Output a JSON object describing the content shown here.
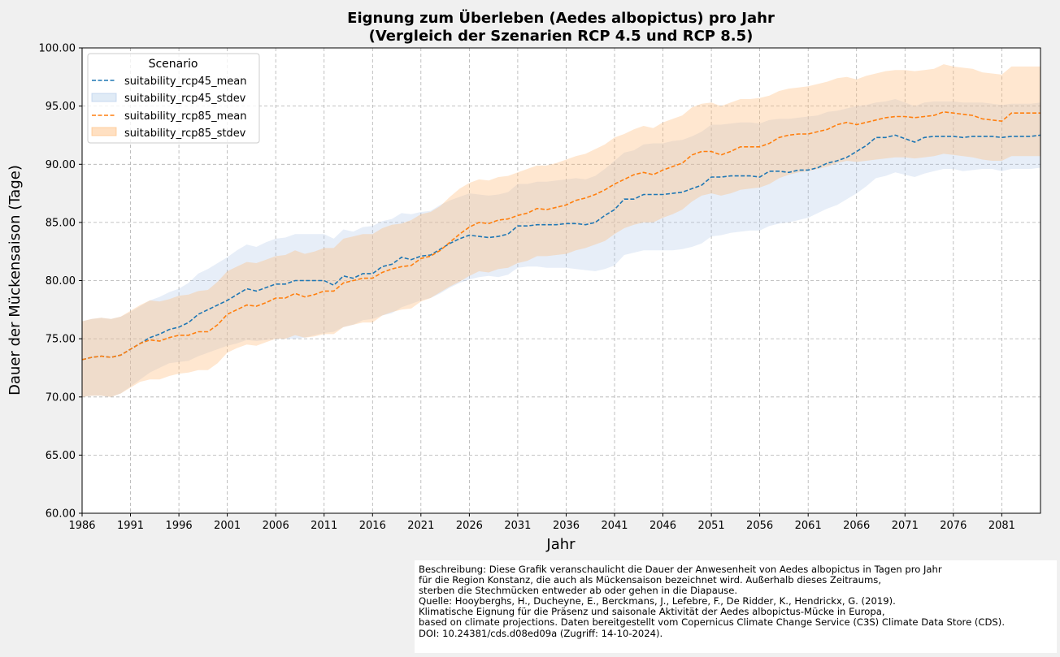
{
  "chart_data": {
    "type": "line",
    "title": [
      "Eignung zum Überleben (Aedes albopictus) pro Jahr",
      "(Vergleich der Szenarien RCP 4.5 und RCP 8.5)"
    ],
    "xlabel": "Jahr",
    "ylabel": "Dauer der Mückensaison (Tage)",
    "xlim": [
      1986,
      2085
    ],
    "ylim": [
      60,
      100
    ],
    "x_ticks": [
      1986,
      1991,
      1996,
      2001,
      2006,
      2011,
      2016,
      2021,
      2026,
      2031,
      2036,
      2041,
      2046,
      2051,
      2056,
      2061,
      2066,
      2071,
      2076,
      2081
    ],
    "y_ticks": [
      "60.00",
      "65.00",
      "70.00",
      "75.00",
      "80.00",
      "85.00",
      "90.00",
      "95.00",
      "100.00"
    ],
    "grid": true,
    "legend": {
      "title": "Scenario",
      "position": "top-left",
      "entries": [
        "suitability_rcp45_mean",
        "suitability_rcp45_stdev",
        "suitability_rcp85_mean",
        "suitability_rcp85_stdev"
      ]
    },
    "x": [
      1986,
      1987,
      1988,
      1989,
      1990,
      1991,
      1992,
      1993,
      1994,
      1995,
      1996,
      1997,
      1998,
      1999,
      2000,
      2001,
      2002,
      2003,
      2004,
      2005,
      2006,
      2007,
      2008,
      2009,
      2010,
      2011,
      2012,
      2013,
      2014,
      2015,
      2016,
      2017,
      2018,
      2019,
      2020,
      2021,
      2022,
      2023,
      2024,
      2025,
      2026,
      2027,
      2028,
      2029,
      2030,
      2031,
      2032,
      2033,
      2034,
      2035,
      2036,
      2037,
      2038,
      2039,
      2040,
      2041,
      2042,
      2043,
      2044,
      2045,
      2046,
      2047,
      2048,
      2049,
      2050,
      2051,
      2052,
      2053,
      2054,
      2055,
      2056,
      2057,
      2058,
      2059,
      2060,
      2061,
      2062,
      2063,
      2064,
      2065,
      2066,
      2067,
      2068,
      2069,
      2070,
      2071,
      2072,
      2073,
      2074,
      2075,
      2076,
      2077,
      2078,
      2079,
      2080,
      2081,
      2082,
      2083,
      2084,
      2085
    ],
    "series": [
      {
        "name": "suitability_rcp45_mean",
        "color": "#1f77b4",
        "values": [
          73.2,
          73.4,
          73.5,
          73.4,
          73.6,
          74.1,
          74.6,
          75.1,
          75.4,
          75.8,
          76.0,
          76.4,
          77.1,
          77.5,
          77.9,
          78.3,
          78.8,
          79.3,
          79.1,
          79.4,
          79.7,
          79.7,
          80.0,
          80.0,
          80.0,
          80.0,
          79.6,
          80.4,
          80.2,
          80.6,
          80.6,
          81.2,
          81.4,
          82.0,
          81.8,
          82.1,
          82.2,
          82.7,
          83.2,
          83.6,
          83.9,
          83.8,
          83.7,
          83.8,
          84.0,
          84.7,
          84.7,
          84.8,
          84.8,
          84.8,
          84.9,
          84.9,
          84.8,
          85.0,
          85.6,
          86.1,
          87.0,
          87.0,
          87.4,
          87.4,
          87.4,
          87.5,
          87.6,
          87.9,
          88.2,
          88.9,
          88.9,
          89.0,
          89.0,
          89.0,
          88.9,
          89.4,
          89.4,
          89.3,
          89.5,
          89.5,
          89.7,
          90.1,
          90.3,
          90.6,
          91.1,
          91.6,
          92.3,
          92.3,
          92.5,
          92.2,
          91.9,
          92.3,
          92.4,
          92.4,
          92.4,
          92.3,
          92.4,
          92.4,
          92.4,
          92.3,
          92.4,
          92.4,
          92.4,
          92.5
        ]
      },
      {
        "name": "suitability_rcp45_stdev",
        "color": "#1f77b4",
        "lower": [
          70.0,
          70.1,
          70.1,
          70.0,
          70.3,
          70.9,
          71.5,
          72.1,
          72.5,
          72.9,
          73.0,
          73.1,
          73.5,
          73.8,
          74.1,
          74.4,
          74.6,
          74.9,
          74.8,
          74.9,
          75.0,
          75.0,
          75.0,
          75.1,
          75.3,
          75.5,
          75.6,
          76.0,
          76.2,
          76.6,
          76.7,
          77.0,
          77.2,
          77.7,
          78.0,
          78.3,
          78.5,
          78.9,
          79.4,
          79.8,
          80.1,
          80.3,
          80.4,
          80.3,
          80.5,
          81.1,
          81.2,
          81.2,
          81.1,
          81.1,
          81.1,
          81.0,
          80.9,
          80.8,
          81.0,
          81.3,
          82.2,
          82.4,
          82.6,
          82.6,
          82.6,
          82.6,
          82.7,
          82.9,
          83.2,
          83.8,
          83.9,
          84.1,
          84.2,
          84.3,
          84.3,
          84.7,
          84.9,
          85.0,
          85.2,
          85.4,
          85.8,
          86.2,
          86.5,
          87.0,
          87.5,
          88.1,
          88.8,
          89.0,
          89.3,
          89.1,
          88.9,
          89.2,
          89.4,
          89.6,
          89.6,
          89.4,
          89.5,
          89.6,
          89.6,
          89.4,
          89.6,
          89.6,
          89.6,
          89.7
        ],
        "upper": [
          76.5,
          76.7,
          76.8,
          76.7,
          76.9,
          77.3,
          77.8,
          78.3,
          78.6,
          79.0,
          79.3,
          79.8,
          80.6,
          81.0,
          81.5,
          82.0,
          82.6,
          83.1,
          82.9,
          83.3,
          83.6,
          83.7,
          84.0,
          84.0,
          84.0,
          84.0,
          83.6,
          84.4,
          84.2,
          84.6,
          84.7,
          85.1,
          85.3,
          85.8,
          85.7,
          85.9,
          86.0,
          86.5,
          86.9,
          87.2,
          87.5,
          87.4,
          87.3,
          87.4,
          87.6,
          88.3,
          88.3,
          88.5,
          88.5,
          88.6,
          88.7,
          88.8,
          88.7,
          89.0,
          89.6,
          90.3,
          91.0,
          91.2,
          91.7,
          91.8,
          91.8,
          92.0,
          92.1,
          92.4,
          92.8,
          93.4,
          93.4,
          93.5,
          93.6,
          93.6,
          93.5,
          93.8,
          93.9,
          93.9,
          94.0,
          94.1,
          94.2,
          94.5,
          94.6,
          94.8,
          95.0,
          95.1,
          95.3,
          95.4,
          95.6,
          95.3,
          95.0,
          95.3,
          95.4,
          95.4,
          95.4,
          95.3,
          95.3,
          95.3,
          95.2,
          95.1,
          95.2,
          95.2,
          95.2,
          95.3
        ]
      },
      {
        "name": "suitability_rcp85_mean",
        "color": "#ff7f0e",
        "values": [
          73.2,
          73.4,
          73.5,
          73.4,
          73.6,
          74.1,
          74.6,
          74.9,
          74.8,
          75.1,
          75.3,
          75.3,
          75.6,
          75.6,
          76.2,
          77.1,
          77.5,
          77.9,
          77.8,
          78.1,
          78.5,
          78.5,
          78.9,
          78.6,
          78.8,
          79.1,
          79.1,
          79.8,
          80.0,
          80.2,
          80.2,
          80.7,
          81.0,
          81.2,
          81.3,
          81.9,
          82.1,
          82.6,
          83.3,
          84.0,
          84.6,
          85.0,
          84.9,
          85.2,
          85.3,
          85.6,
          85.8,
          86.2,
          86.1,
          86.3,
          86.5,
          86.9,
          87.1,
          87.4,
          87.8,
          88.3,
          88.7,
          89.1,
          89.3,
          89.1,
          89.5,
          89.8,
          90.1,
          90.8,
          91.1,
          91.1,
          90.8,
          91.1,
          91.5,
          91.5,
          91.5,
          91.8,
          92.3,
          92.5,
          92.6,
          92.6,
          92.8,
          93.0,
          93.4,
          93.6,
          93.4,
          93.6,
          93.8,
          94.0,
          94.1,
          94.1,
          94.0,
          94.1,
          94.2,
          94.5,
          94.4,
          94.3,
          94.2,
          93.9,
          93.8,
          93.7,
          94.4,
          94.4,
          94.4,
          94.4
        ]
      },
      {
        "name": "suitability_rcp85_stdev",
        "color": "#ff7f0e",
        "lower": [
          70.0,
          70.1,
          70.1,
          70.0,
          70.3,
          70.8,
          71.3,
          71.5,
          71.5,
          71.8,
          72.0,
          72.1,
          72.3,
          72.3,
          72.9,
          73.8,
          74.2,
          74.5,
          74.4,
          74.7,
          75.0,
          75.0,
          75.3,
          75.1,
          75.2,
          75.4,
          75.4,
          76.0,
          76.2,
          76.4,
          76.4,
          77.0,
          77.3,
          77.5,
          77.6,
          78.2,
          78.5,
          79.0,
          79.5,
          79.9,
          80.4,
          80.8,
          80.7,
          81.0,
          81.1,
          81.5,
          81.7,
          82.1,
          82.1,
          82.2,
          82.3,
          82.6,
          82.8,
          83.1,
          83.4,
          84.0,
          84.5,
          84.8,
          85.0,
          85.0,
          85.4,
          85.7,
          86.1,
          86.8,
          87.3,
          87.5,
          87.3,
          87.5,
          87.8,
          87.9,
          88.0,
          88.3,
          88.8,
          89.1,
          89.3,
          89.4,
          89.6,
          89.8,
          90.1,
          90.3,
          90.2,
          90.3,
          90.4,
          90.5,
          90.6,
          90.6,
          90.5,
          90.6,
          90.7,
          90.9,
          90.8,
          90.7,
          90.6,
          90.4,
          90.3,
          90.3,
          90.7,
          90.7,
          90.7,
          90.7
        ],
        "upper": [
          76.5,
          76.7,
          76.8,
          76.7,
          76.9,
          77.4,
          77.9,
          78.3,
          78.2,
          78.4,
          78.7,
          78.8,
          79.1,
          79.2,
          79.9,
          80.8,
          81.2,
          81.6,
          81.5,
          81.8,
          82.1,
          82.2,
          82.6,
          82.3,
          82.5,
          82.8,
          82.8,
          83.6,
          83.8,
          84.0,
          84.0,
          84.5,
          84.8,
          84.9,
          85.2,
          85.7,
          85.9,
          86.4,
          87.2,
          87.9,
          88.4,
          88.7,
          88.6,
          88.9,
          89.0,
          89.3,
          89.6,
          89.9,
          89.9,
          90.1,
          90.4,
          90.7,
          90.9,
          91.3,
          91.7,
          92.3,
          92.6,
          93.0,
          93.3,
          93.1,
          93.6,
          93.9,
          94.2,
          94.9,
          95.2,
          95.3,
          95.0,
          95.3,
          95.6,
          95.6,
          95.7,
          95.9,
          96.3,
          96.5,
          96.6,
          96.7,
          96.9,
          97.1,
          97.4,
          97.5,
          97.3,
          97.6,
          97.8,
          98.0,
          98.1,
          98.1,
          98.0,
          98.1,
          98.2,
          98.6,
          98.4,
          98.3,
          98.2,
          97.9,
          97.8,
          97.7,
          98.4,
          98.4,
          98.4,
          98.4
        ]
      }
    ]
  },
  "caption": [
    "Beschreibung: Diese Grafik veranschaulicht die Dauer der Anwesenheit von Aedes albopictus in Tagen pro Jahr",
    "für die Region Konstanz, die auch als Mückensaison bezeichnet wird. Außerhalb dieses Zeitraums,",
    "sterben die Stechmücken entweder ab oder gehen in die Diapause.",
    "Quelle: Hooyberghs, H., Ducheyne, E., Berckmans, J., Lefebre, F., De Ridder, K., Hendrickx, G. (2019).",
    "Klimatische Eignung für die Präsenz und saisonale Aktivität der Aedes albopictus-Mücke in Europa,",
    "based on climate projections. Daten bereitgestellt vom Copernicus Climate Change Service (C3S) Climate Data Store (CDS).",
    "DOI: 10.24381/cds.d08ed09a (Zugriff: 14-10-2024)."
  ]
}
